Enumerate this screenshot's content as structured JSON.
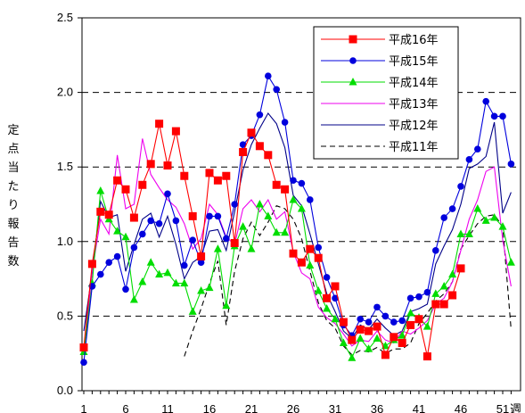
{
  "chart_data": {
    "type": "line",
    "title": "",
    "xlabel": "週",
    "ylabel": "定点当たり報告数",
    "xlim": [
      1,
      52
    ],
    "ylim": [
      0,
      2.5
    ],
    "yticks": [
      "0.0",
      "0.5",
      "1.0",
      "1.5",
      "2.0",
      "2.5"
    ],
    "xticks": [
      "1",
      "6",
      "11",
      "16",
      "21",
      "26",
      "31",
      "36",
      "41",
      "46",
      "51"
    ],
    "grid": "horizontal-dashed",
    "legend_position": "top-right",
    "series": [
      {
        "name": "平成16年",
        "color": "#ff0000",
        "marker": "square",
        "dash": "solid",
        "x": [
          1,
          2,
          3,
          4,
          5,
          6,
          7,
          8,
          9,
          10,
          11,
          12,
          13,
          14,
          15,
          16,
          17,
          18,
          19,
          20,
          21,
          22,
          23,
          24,
          25,
          26,
          27,
          28,
          29,
          30,
          31,
          32,
          33,
          34,
          35,
          36,
          37,
          38,
          39,
          40,
          41,
          42,
          43,
          44,
          45,
          46
        ],
        "values": [
          0.29,
          0.85,
          1.2,
          1.18,
          1.41,
          1.35,
          1.16,
          1.38,
          1.52,
          1.79,
          1.51,
          1.74,
          1.44,
          1.17,
          0.9,
          1.46,
          1.41,
          1.44,
          0.99,
          1.6,
          1.73,
          1.64,
          1.58,
          1.38,
          1.35,
          0.92,
          0.86,
          0.95,
          0.89,
          0.62,
          0.7,
          0.46,
          0.34,
          0.41,
          0.4,
          0.43,
          0.24,
          0.36,
          0.32,
          0.44,
          0.48,
          0.23,
          0.58,
          0.58,
          0.64,
          0.82
        ]
      },
      {
        "name": "平成15年",
        "color": "#0000dd",
        "marker": "circle",
        "dash": "solid",
        "x": [
          1,
          2,
          3,
          4,
          5,
          6,
          7,
          8,
          9,
          10,
          11,
          12,
          13,
          14,
          15,
          16,
          17,
          18,
          19,
          20,
          21,
          22,
          23,
          24,
          25,
          26,
          27,
          28,
          29,
          30,
          31,
          32,
          33,
          34,
          35,
          36,
          37,
          38,
          39,
          40,
          41,
          42,
          43,
          44,
          45,
          46,
          47,
          48,
          49,
          50,
          51,
          52
        ],
        "values": [
          0.19,
          0.7,
          0.78,
          0.86,
          0.9,
          0.68,
          0.96,
          1.05,
          1.14,
          1.12,
          1.32,
          1.14,
          0.84,
          1.01,
          0.86,
          1.17,
          1.17,
          1.02,
          1.25,
          1.65,
          1.71,
          1.85,
          2.11,
          2.02,
          1.8,
          1.41,
          1.39,
          1.28,
          0.96,
          0.76,
          0.62,
          0.44,
          0.37,
          0.48,
          0.46,
          0.56,
          0.5,
          0.46,
          0.47,
          0.62,
          0.63,
          0.66,
          0.94,
          1.16,
          1.22,
          1.37,
          1.55,
          1.62,
          1.94,
          1.84,
          1.84,
          1.52
        ]
      },
      {
        "name": "平成14年",
        "color": "#00dd00",
        "marker": "triangle",
        "dash": "solid",
        "x": [
          1,
          2,
          3,
          4,
          5,
          6,
          7,
          8,
          9,
          10,
          11,
          12,
          13,
          14,
          15,
          16,
          17,
          18,
          19,
          20,
          21,
          22,
          23,
          24,
          25,
          26,
          27,
          28,
          29,
          30,
          31,
          32,
          33,
          34,
          35,
          36,
          37,
          38,
          39,
          40,
          41,
          42,
          43,
          44,
          45,
          46,
          47,
          48,
          49,
          50,
          51,
          52
        ],
        "values": [
          0.26,
          0.72,
          1.34,
          1.15,
          1.07,
          1.03,
          0.61,
          0.73,
          0.86,
          0.78,
          0.79,
          0.72,
          0.72,
          0.53,
          0.67,
          0.69,
          0.95,
          0.57,
          0.97,
          1.1,
          0.95,
          1.25,
          1.17,
          1.06,
          1.06,
          1.28,
          1.22,
          0.84,
          0.67,
          0.55,
          0.48,
          0.32,
          0.22,
          0.35,
          0.28,
          0.35,
          0.3,
          0.34,
          0.37,
          0.52,
          0.49,
          0.43,
          0.65,
          0.7,
          0.78,
          1.05,
          1.05,
          1.22,
          1.14,
          1.16,
          1.1,
          0.86
        ]
      },
      {
        "name": "平成13年",
        "color": "#ee00ee",
        "marker": "none",
        "dash": "solid",
        "x": [
          1,
          2,
          3,
          4,
          5,
          6,
          7,
          8,
          9,
          10,
          11,
          12,
          13,
          14,
          15,
          16,
          17,
          18,
          19,
          20,
          21,
          22,
          23,
          24,
          25,
          26,
          27,
          28,
          29,
          30,
          31,
          32,
          33,
          34,
          35,
          36,
          37,
          38,
          39,
          40,
          41,
          42,
          43,
          44,
          45,
          46,
          47,
          48,
          49,
          50,
          51,
          52
        ],
        "values": [
          0.25,
          0.8,
          1.15,
          1.05,
          1.58,
          1.22,
          1.25,
          1.69,
          1.45,
          1.36,
          1.28,
          1.23,
          1.12,
          0.95,
          1.02,
          1.25,
          1.18,
          1.03,
          0.98,
          1.22,
          1.28,
          1.2,
          1.28,
          1.15,
          1.2,
          0.93,
          0.79,
          0.75,
          0.56,
          0.49,
          0.45,
          0.38,
          0.3,
          0.34,
          0.33,
          0.4,
          0.34,
          0.32,
          0.4,
          0.38,
          0.42,
          0.47,
          0.58,
          0.62,
          0.73,
          0.94,
          1.15,
          1.28,
          1.47,
          1.5,
          1.01,
          0.7
        ]
      },
      {
        "name": "平成12年",
        "color": "#000088",
        "marker": "none",
        "dash": "solid",
        "x": [
          1,
          2,
          3,
          4,
          5,
          6,
          7,
          8,
          9,
          10,
          11,
          12,
          13,
          14,
          15,
          16,
          17,
          18,
          19,
          20,
          21,
          22,
          23,
          24,
          25,
          26,
          27,
          28,
          29,
          30,
          31,
          32,
          33,
          34,
          35,
          36,
          37,
          38,
          39,
          40,
          41,
          42,
          43,
          44,
          45,
          46,
          47,
          48,
          49,
          50,
          51,
          52
        ],
        "values": [
          0.4,
          0.79,
          1.27,
          1.16,
          1.18,
          0.8,
          0.98,
          1.15,
          1.19,
          1.03,
          1.17,
          0.98,
          0.75,
          0.86,
          0.9,
          1.07,
          1.08,
          0.94,
          1.2,
          1.48,
          1.65,
          1.76,
          1.86,
          1.79,
          1.63,
          1.31,
          1.24,
          1.05,
          0.85,
          0.65,
          0.53,
          0.4,
          0.35,
          0.44,
          0.41,
          0.48,
          0.42,
          0.37,
          0.4,
          0.53,
          0.55,
          0.58,
          0.85,
          0.97,
          1.08,
          1.25,
          1.49,
          1.52,
          1.57,
          1.8,
          1.19,
          1.33
        ]
      },
      {
        "name": "平成11年",
        "color": "#000000",
        "marker": "none",
        "dash": "dashed",
        "x": [
          13,
          14,
          15,
          16,
          17,
          18,
          19,
          20,
          21,
          22,
          23,
          24,
          25,
          26,
          27,
          28,
          29,
          30,
          31,
          32,
          33,
          34,
          35,
          36,
          37,
          38,
          39,
          40,
          41,
          42,
          43,
          44,
          45,
          46,
          47,
          48,
          49,
          50,
          51,
          52
        ],
        "values": [
          0.23,
          0.4,
          0.55,
          0.72,
          0.87,
          0.44,
          0.8,
          1.02,
          1.13,
          1.04,
          1.13,
          1.24,
          1.22,
          1.15,
          1.02,
          0.8,
          0.59,
          0.47,
          0.42,
          0.3,
          0.24,
          0.27,
          0.26,
          0.29,
          0.25,
          0.28,
          0.28,
          0.32,
          0.45,
          0.52,
          0.6,
          0.65,
          0.73,
          0.95,
          1.04,
          1.12,
          1.17,
          1.18,
          1.1,
          0.41
        ]
      }
    ]
  }
}
